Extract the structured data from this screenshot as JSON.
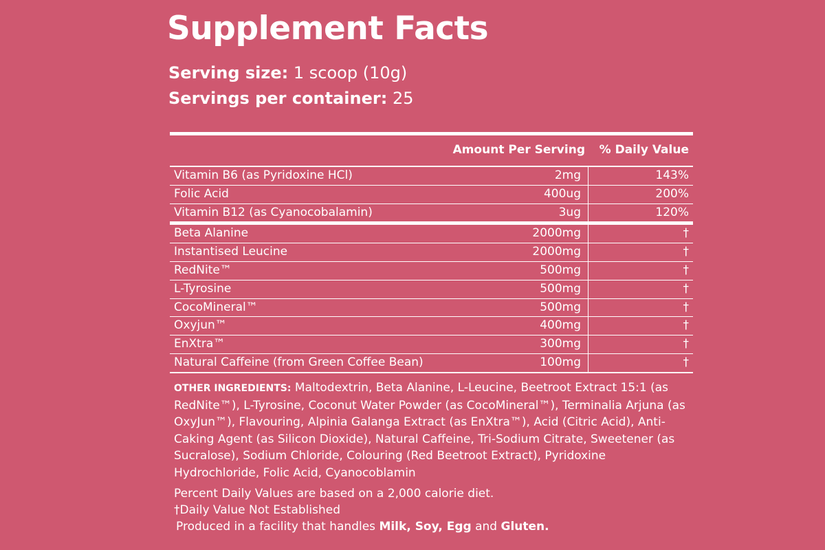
{
  "title": "Supplement Facts",
  "serving": {
    "size_label": "Serving size:",
    "size": "1 scoop (10g)",
    "servings_label": "Servings per container:",
    "servings": "25"
  },
  "table": {
    "header": [
      "Amount Per Serving",
      "% Daily Value"
    ],
    "groups": [
      [
        [
          "Vitamin B6 (as Pyridoxine HCl)",
          "2mg",
          "143%"
        ],
        [
          "Folic Acid",
          "400ug",
          "200%"
        ],
        [
          "Vitamin B12 (as Cyanocobalamin)",
          "3ug",
          "120%"
        ]
      ],
      [
        [
          "Beta Alanine",
          "2000mg",
          "†"
        ],
        [
          "Instantised Leucine",
          "2000mg",
          "†"
        ],
        [
          "RedNite™",
          "500mg",
          "†"
        ],
        [
          "L-Tyrosine",
          "500mg",
          "†"
        ],
        [
          "CocoMineral™",
          "500mg",
          "†"
        ],
        [
          "Oxyjun™",
          "400mg",
          "†"
        ],
        [
          "EnXtra™",
          "300mg",
          "†"
        ],
        [
          "Natural Caffeine (from Green Coffee Bean)",
          "100mg",
          "†"
        ]
      ]
    ]
  },
  "other_ingredients": {
    "label": "OTHER INGREDIENTS:",
    "text": "Maltodextrin, Beta Alanine, L-Leucine, Beetroot Extract 15:1 (as RedNite™), L-Tyrosine, Coconut Water Powder (as CocoMineral™), Terminalia Arjuna (as OxyJun™), Flavouring, Alpinia Galanga Extract (as EnXtra™), Acid (Citric Acid), Anti-Caking Agent (as Silicon Dioxide), Natural Caffeine, Tri-Sodium Citrate, Sweetener (as Sucralose), Sodium Chloride, Colouring (Red Beetroot Extract), Pyridoxine Hydrochloride, Folic Acid, Cyanocoblamin"
  },
  "footnotes": [
    "Percent Daily Values are based on a 2,000 calorie diet.",
    "†Daily Value Not Established"
  ],
  "allergen": {
    "text": "Produced in a facility that handles",
    "items": "Milk, Soy, Egg",
    "joiner": "and",
    "last": "Gluten."
  }
}
